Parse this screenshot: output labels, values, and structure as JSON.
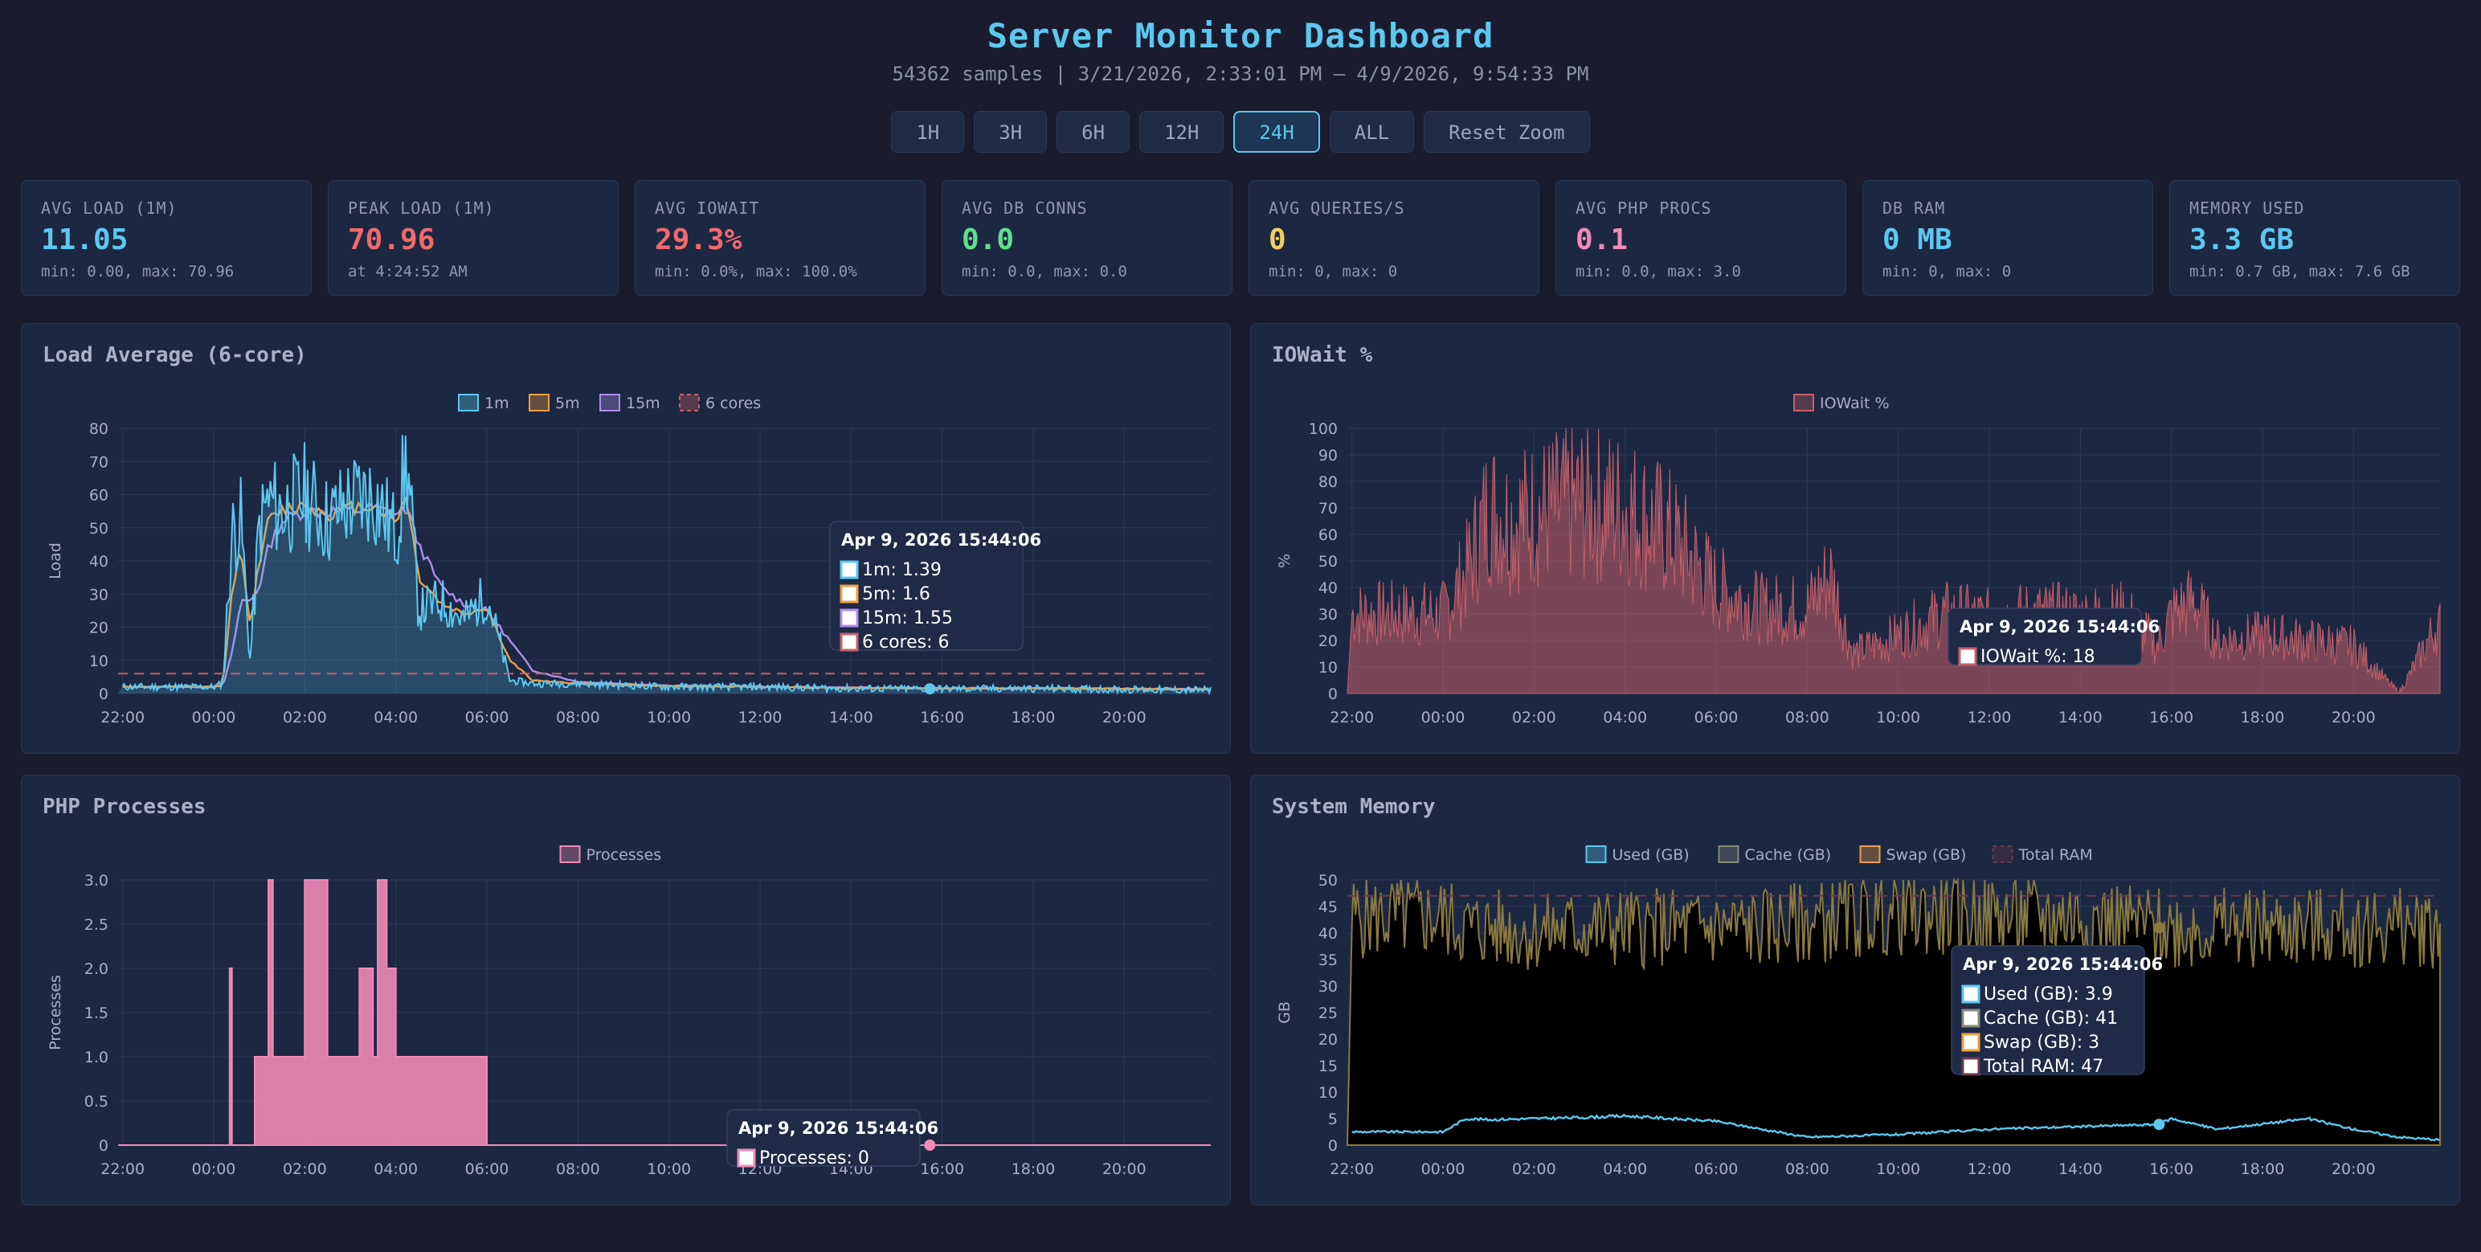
{
  "header": {
    "title": "Server Monitor Dashboard",
    "subtitle": "54362 samples | 3/21/2026, 2:33:01 PM – 4/9/2026, 9:54:33 PM"
  },
  "range_buttons": [
    {
      "label": "1H",
      "active": false
    },
    {
      "label": "3H",
      "active": false
    },
    {
      "label": "6H",
      "active": false
    },
    {
      "label": "12H",
      "active": false
    },
    {
      "label": "24H",
      "active": true
    },
    {
      "label": "ALL",
      "active": false
    },
    {
      "label": "Reset Zoom",
      "active": false
    }
  ],
  "stats": [
    {
      "label": "AVG LOAD (1M)",
      "value": "11.05",
      "sub": "min: 0.00, max: 70.96",
      "color": "#5cc8f0"
    },
    {
      "label": "PEAK LOAD (1M)",
      "value": "70.96",
      "sub": "at 4:24:52 AM",
      "color": "#f06a6a"
    },
    {
      "label": "AVG IOWAIT",
      "value": "29.3%",
      "sub": "min: 0.0%, max: 100.0%",
      "color": "#f06a6a"
    },
    {
      "label": "AVG DB CONNS",
      "value": "0.0",
      "sub": "min: 0.0, max: 0.0",
      "color": "#5fe08a"
    },
    {
      "label": "AVG QUERIES/S",
      "value": "0",
      "sub": "min: 0, max: 0",
      "color": "#f0d060"
    },
    {
      "label": "AVG PHP PROCS",
      "value": "0.1",
      "sub": "min: 0.0, max: 3.0",
      "color": "#f08ab8"
    },
    {
      "label": "DB RAM",
      "value": "0 MB",
      "sub": "min: 0, max: 0",
      "color": "#5cc8f0"
    },
    {
      "label": "MEMORY USED",
      "value": "3.3 GB",
      "sub": "min: 0.7 GB, max: 7.6 GB",
      "color": "#5cc8f0"
    }
  ],
  "colors": {
    "load_1m": "#5cc8f0",
    "load_5m": "#f0a040",
    "load_15m": "#b08ce8",
    "cores": "#c8606a",
    "iowait": "#c8606a",
    "processes": "#f08ab8",
    "mem_used": "#5cc8f0",
    "mem_cache": "#8a8a7a",
    "mem_swap": "#f0a040",
    "mem_total": "#6a3a4a"
  },
  "x_ticks": [
    "22:00",
    "00:00",
    "02:00",
    "04:00",
    "06:00",
    "08:00",
    "10:00",
    "12:00",
    "14:00",
    "16:00",
    "18:00",
    "20:00"
  ],
  "charts": {
    "load": {
      "title": "Load Average (6-core)",
      "ylabel": "Load",
      "legend": [
        "1m",
        "5m",
        "15m",
        "6 cores"
      ],
      "y_ticks": [
        "80",
        "70",
        "60",
        "50",
        "40",
        "30",
        "20",
        "10",
        "0"
      ],
      "tooltip": {
        "time": "Apr 9, 2026 15:44:06",
        "lines": [
          "1m: 1.39",
          "5m: 1.6",
          "15m: 1.55",
          "6 cores: 6"
        ]
      }
    },
    "iowait": {
      "title": "IOWait %",
      "ylabel": "%",
      "legend": [
        "IOWait %"
      ],
      "y_ticks": [
        "100",
        "90",
        "80",
        "70",
        "60",
        "50",
        "40",
        "30",
        "20",
        "10",
        "0"
      ],
      "tooltip": {
        "time": "Apr 9, 2026 15:44:06",
        "lines": [
          "IOWait %: 18"
        ]
      }
    },
    "php": {
      "title": "PHP Processes",
      "ylabel": "Processes",
      "legend": [
        "Processes"
      ],
      "y_ticks": [
        "3.0",
        "2.5",
        "2.0",
        "1.5",
        "1.0",
        "0.5",
        "0"
      ],
      "tooltip": {
        "time": "Apr 9, 2026 15:44:06",
        "lines": [
          "Processes: 0"
        ]
      }
    },
    "memory": {
      "title": "System Memory",
      "ylabel": "GB",
      "legend": [
        "Used (GB)",
        "Cache (GB)",
        "Swap (GB)",
        "Total RAM"
      ],
      "y_ticks": [
        "50",
        "45",
        "40",
        "35",
        "30",
        "25",
        "20",
        "15",
        "10",
        "5",
        "0"
      ],
      "tooltip": {
        "time": "Apr 9, 2026 15:44:06",
        "lines": [
          "Used (GB): 3.9",
          "Cache (GB): 41",
          "Swap (GB): 3",
          "Total RAM: 47"
        ]
      }
    }
  },
  "chart_data": [
    {
      "type": "line",
      "title": "Load Average (6-core)",
      "ylabel": "Load",
      "ylim": [
        0,
        80
      ],
      "x_hours": [
        -2,
        0,
        0.2,
        0.4,
        0.6,
        0.8,
        1,
        1.2,
        1.5,
        2,
        2.5,
        3,
        3.5,
        4,
        4.24,
        4.5,
        5,
        5.5,
        6,
        6.5,
        7,
        8,
        10,
        12,
        14,
        16,
        18,
        20,
        21.9
      ],
      "series": [
        {
          "name": "1m",
          "values": [
            2,
            2,
            3,
            48,
            52,
            10,
            50,
            58,
            55,
            60,
            52,
            58,
            60,
            48,
            70.96,
            25,
            28,
            22,
            30,
            4,
            3,
            3,
            2,
            2,
            1.5,
            1.4,
            1.5,
            1.2,
            1
          ]
        },
        {
          "name": "5m",
          "values": [
            2,
            2,
            2.5,
            30,
            45,
            20,
            40,
            52,
            55,
            57,
            54,
            56,
            57,
            52,
            60,
            35,
            27,
            24,
            26,
            10,
            4,
            3,
            2.2,
            2,
            1.7,
            1.6,
            1.6,
            1.4,
            1.2
          ]
        },
        {
          "name": "15m",
          "values": [
            2,
            2,
            2.2,
            12,
            28,
            28,
            32,
            44,
            52,
            55,
            55,
            55,
            56,
            54,
            56,
            45,
            32,
            27,
            25,
            16,
            7,
            3.5,
            2.4,
            2.1,
            1.8,
            1.55,
            1.6,
            1.5,
            1.3
          ]
        },
        {
          "name": "6 cores",
          "values": [
            6,
            6,
            6,
            6,
            6,
            6,
            6,
            6,
            6,
            6,
            6,
            6,
            6,
            6,
            6,
            6,
            6,
            6,
            6,
            6,
            6,
            6,
            6,
            6,
            6,
            6,
            6,
            6,
            6
          ]
        }
      ]
    },
    {
      "type": "area",
      "title": "IOWait %",
      "ylabel": "%",
      "ylim": [
        0,
        100
      ],
      "x_hours": [
        -2,
        0,
        0.5,
        1,
        1.5,
        2,
        3,
        4,
        5,
        6,
        7,
        8,
        8.5,
        9,
        10,
        11,
        12,
        13,
        14,
        15,
        15.7,
        16,
        16.5,
        17,
        18,
        19,
        20,
        21,
        21.8
      ],
      "series": [
        {
          "name": "IOWait %",
          "values": [
            30,
            30,
            45,
            70,
            65,
            68,
            72,
            70,
            60,
            40,
            32,
            32,
            45,
            15,
            22,
            30,
            28,
            30,
            29,
            30,
            18,
            30,
            35,
            20,
            22,
            20,
            18,
            0,
            25
          ]
        }
      ]
    },
    {
      "type": "line",
      "title": "PHP Processes",
      "ylabel": "Processes",
      "ylim": [
        0,
        3
      ],
      "x_hours": [
        -2,
        0,
        0.3,
        0.35,
        0.4,
        0.9,
        1,
        1.2,
        1.3,
        1.5,
        2,
        2.5,
        3,
        3.2,
        3.5,
        3.6,
        3.8,
        4,
        4.5,
        4.8,
        5.5,
        6,
        8,
        10,
        12,
        14,
        16,
        18,
        20,
        21.9
      ],
      "series": [
        {
          "name": "Processes",
          "values": [
            0,
            0,
            0,
            2,
            0,
            1,
            1,
            3,
            1,
            1,
            3,
            1,
            1,
            2,
            1,
            3,
            2,
            1,
            1,
            1,
            1,
            0,
            0,
            0,
            0,
            0,
            0,
            0,
            0,
            0
          ]
        }
      ]
    },
    {
      "type": "line",
      "title": "System Memory",
      "ylabel": "GB",
      "ylim": [
        0,
        50
      ],
      "x_hours": [
        -2,
        0,
        0.5,
        1,
        2,
        3,
        4,
        5,
        6,
        7,
        8,
        10,
        12,
        14,
        15.7,
        16,
        17,
        18,
        19,
        20,
        21,
        21.9
      ],
      "series": [
        {
          "name": "Used (GB)",
          "values": [
            2.5,
            2.5,
            5,
            4.8,
            5,
            5.2,
            5.5,
            5,
            4.5,
            3,
            1.5,
            2,
            3,
            3.5,
            3.9,
            5,
            3,
            4,
            5,
            3,
            1.5,
            1
          ]
        },
        {
          "name": "Cache (GB)",
          "values": [
            43,
            43,
            41,
            41,
            40,
            41,
            41,
            41,
            41,
            41,
            42,
            44,
            43,
            43,
            41,
            41,
            41,
            41,
            41,
            41,
            41,
            41
          ]
        },
        {
          "name": "Swap (GB)",
          "values": [
            3,
            3,
            3,
            3,
            3,
            3,
            3,
            3,
            3,
            3,
            3,
            3,
            3,
            3,
            3,
            3,
            3,
            3,
            3,
            3,
            3,
            3
          ]
        },
        {
          "name": "Total RAM",
          "values": [
            47,
            47,
            47,
            47,
            47,
            47,
            47,
            47,
            47,
            47,
            47,
            47,
            47,
            47,
            47,
            47,
            47,
            47,
            47,
            47,
            47,
            47
          ]
        }
      ]
    }
  ]
}
